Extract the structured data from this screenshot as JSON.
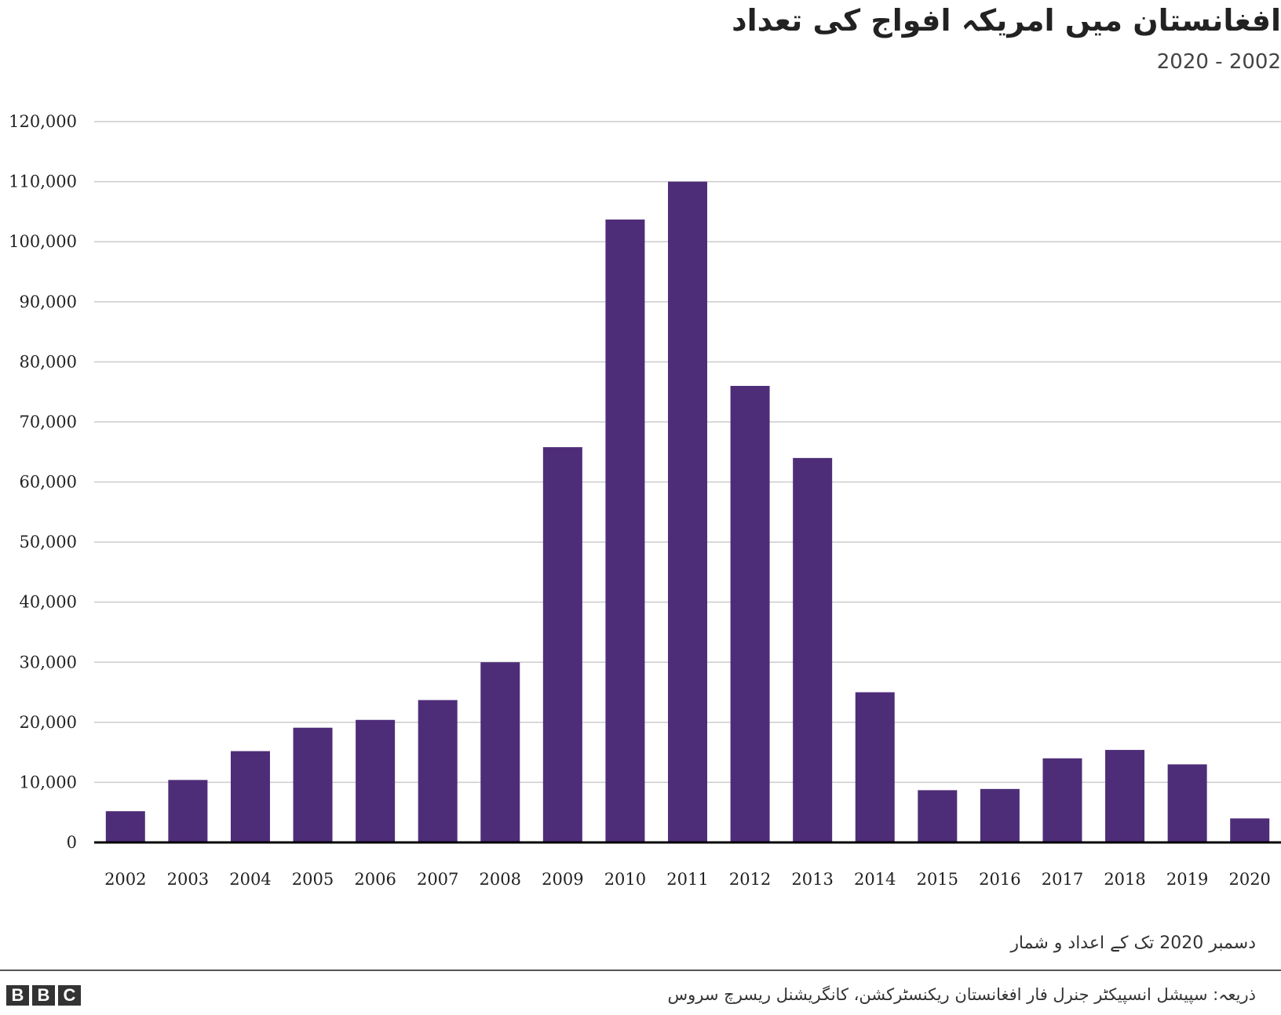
{
  "header": {
    "title": "افغانستان میں امریکہ افواج کی تعداد",
    "subtitle": "2020 - 2002"
  },
  "footer": {
    "note": "دسمبر 2020 تک کے اعداد و شمار",
    "source": "ذریعہ: سپیشل انسپیکٹر جنرل فار افغانستان ریکنسٹرکشن، کانگریشنل ریسرچ سروس",
    "logo_letters": [
      "B",
      "B",
      "C"
    ]
  },
  "colors": {
    "bar": "#4e2d78",
    "grid": "#cccccc",
    "axis": "#000000"
  },
  "chart_data": {
    "type": "bar",
    "categories": [
      "2002",
      "2003",
      "2004",
      "2005",
      "2006",
      "2007",
      "2008",
      "2009",
      "2010",
      "2011",
      "2012",
      "2013",
      "2014",
      "2015",
      "2016",
      "2017",
      "2018",
      "2019",
      "2020"
    ],
    "values": [
      5200,
      10400,
      15200,
      19100,
      20400,
      23700,
      30000,
      65800,
      103700,
      110000,
      76000,
      64000,
      25000,
      8700,
      8900,
      14000,
      15400,
      13000,
      4000
    ],
    "yticks": [
      "0",
      "10,000",
      "20,000",
      "30,000",
      "40,000",
      "50,000",
      "60,000",
      "70,000",
      "80,000",
      "90,000",
      "100,000",
      "110,000",
      "120,000"
    ],
    "ylim": [
      0,
      120000
    ],
    "grid": true,
    "legend": "none"
  }
}
